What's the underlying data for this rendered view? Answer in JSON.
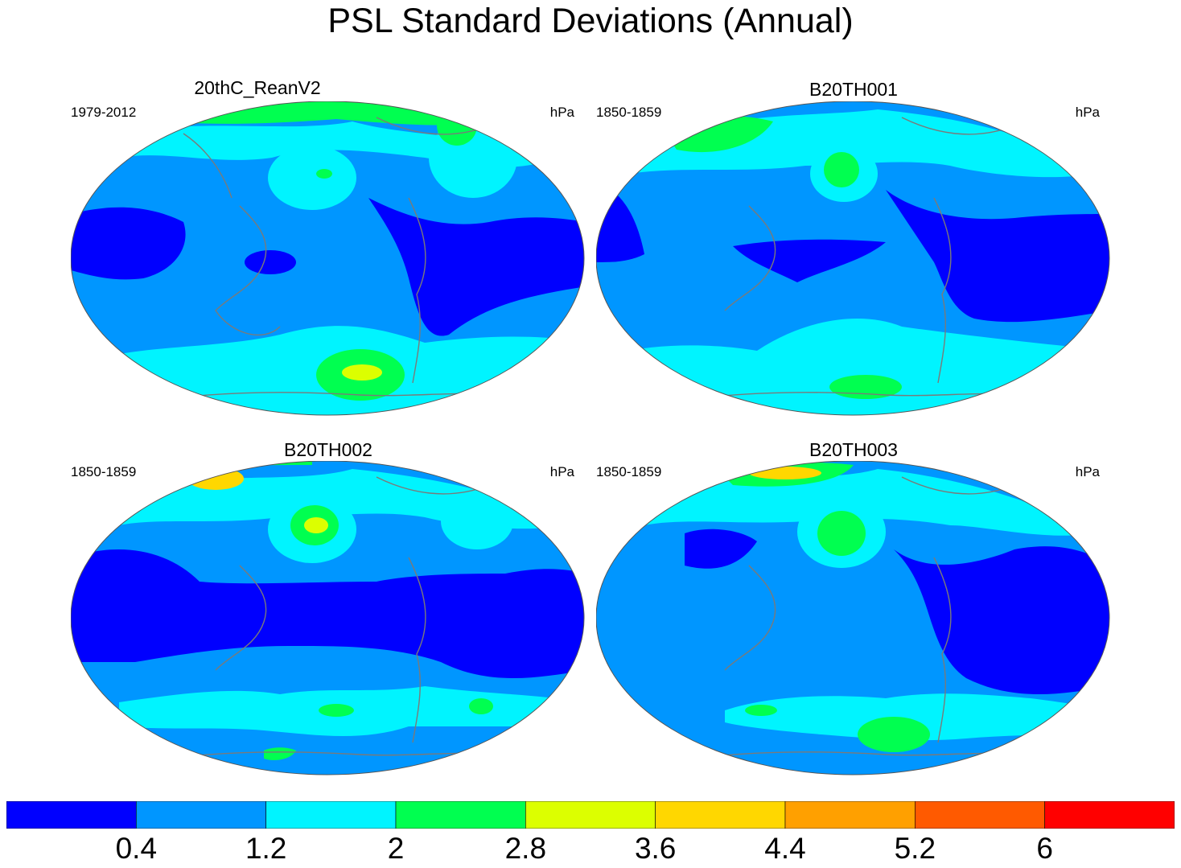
{
  "title": "PSL Standard Deviations (Annual)",
  "panels": [
    {
      "name": "20thC_ReanV2",
      "period": "1979-2012",
      "units": "hPa"
    },
    {
      "name": "B20TH001",
      "period": "1850-1859",
      "units": "hPa"
    },
    {
      "name": "B20TH002",
      "period": "1850-1859",
      "units": "hPa"
    },
    {
      "name": "B20TH003",
      "period": "1850-1859",
      "units": "hPa"
    }
  ],
  "colorbar": {
    "colors": [
      "#0000ff",
      "#0096ff",
      "#00f4ff",
      "#00ff50",
      "#dcff00",
      "#ffd700",
      "#ffa000",
      "#ff5a00",
      "#ff0000"
    ],
    "labels": [
      "0.4",
      "1.2",
      "2",
      "2.8",
      "3.6",
      "4.4",
      "5.2",
      "6"
    ]
  },
  "map_colors": {
    "coast": "#7a7a7a",
    "outline": "#555555"
  }
}
